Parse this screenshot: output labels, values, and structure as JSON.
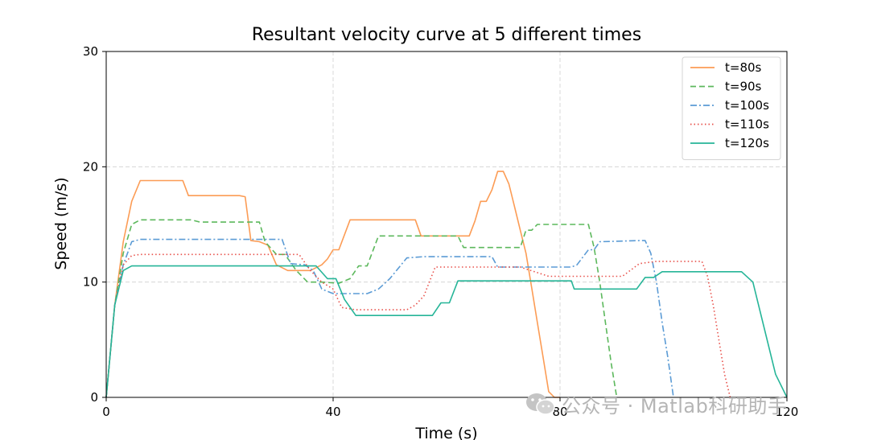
{
  "chart_data": {
    "type": "line",
    "title": "Resultant velocity curve at 5 different times",
    "xlabel": "Time (s)",
    "ylabel": "Speed (m/s)",
    "xlim": [
      0,
      120
    ],
    "ylim": [
      0,
      30
    ],
    "xticks": [
      0,
      40,
      80,
      120
    ],
    "yticks": [
      0,
      10,
      20,
      30
    ],
    "grid": true,
    "legend_position": "top-right",
    "series": [
      {
        "name": "t=80s",
        "color": "#fc9c55",
        "style": "solid",
        "x": [
          0,
          1.5,
          3,
          4.5,
          6,
          13.5,
          14.5,
          23.5,
          24.5,
          25.5,
          27,
          28.5,
          30,
          32,
          36,
          38,
          39,
          40,
          41,
          43,
          54.5,
          55.5,
          56.5,
          64,
          65,
          66,
          67,
          68,
          69,
          70,
          71,
          72,
          73,
          74,
          75,
          76,
          77,
          78,
          79,
          80
        ],
        "y": [
          0,
          8,
          13.5,
          17,
          18.8,
          18.8,
          17.5,
          17.5,
          17.4,
          13.6,
          13.5,
          13.2,
          11.5,
          11,
          11,
          11.5,
          12,
          12.8,
          12.8,
          15.4,
          15.4,
          14,
          14,
          14,
          15.3,
          17,
          17,
          18,
          19.6,
          19.6,
          18.5,
          16.5,
          14.5,
          12.5,
          9.5,
          6.5,
          3.5,
          0.5,
          0,
          0
        ]
      },
      {
        "name": "t=90s",
        "color": "#5cb85c",
        "style": "dashed",
        "x": [
          0,
          1.5,
          3,
          4.5,
          6,
          15,
          16.5,
          27,
          28,
          30,
          31.5,
          33.5,
          35.5,
          38,
          41,
          43,
          44.5,
          46,
          48,
          53,
          62,
          63,
          73,
          74,
          75,
          76,
          77,
          78,
          85,
          86,
          87,
          88,
          89,
          90
        ],
        "y": [
          0,
          8,
          12.5,
          15,
          15.4,
          15.4,
          15.2,
          15.2,
          13.5,
          12.4,
          12.4,
          11,
          10,
          10,
          9.9,
          10.3,
          11.4,
          11.4,
          14,
          14,
          14,
          13,
          13,
          14.5,
          14.5,
          15,
          15,
          15,
          15,
          13,
          10,
          6.5,
          3,
          0
        ]
      },
      {
        "name": "t=100s",
        "color": "#5b9bd5",
        "style": "dashdot",
        "x": [
          0,
          1.5,
          3,
          4.5,
          6,
          31,
          32.5,
          35,
          36.5,
          38,
          40,
          46,
          48,
          50,
          53,
          56,
          68,
          69,
          82,
          83,
          85,
          86,
          87,
          94,
          95,
          96,
          97,
          98,
          99,
          100
        ],
        "y": [
          0,
          8,
          11.5,
          13.5,
          13.7,
          13.7,
          11.6,
          11.5,
          11,
          9.4,
          9,
          9,
          9.4,
          10.3,
          12.1,
          12.2,
          12.2,
          11.3,
          11.3,
          11.5,
          12.8,
          12.8,
          13.5,
          13.6,
          13.6,
          12.5,
          10,
          6.5,
          3.5,
          0
        ]
      },
      {
        "name": "t=110s",
        "color": "#e8504a",
        "style": "dotted",
        "x": [
          0,
          1.5,
          3,
          4.5,
          6,
          34,
          36,
          38,
          40,
          41.5,
          44,
          53,
          54.5,
          56,
          58,
          69,
          70,
          73,
          78,
          80,
          90,
          91,
          94,
          97,
          104,
          105,
          106,
          107,
          108,
          109,
          110
        ],
        "y": [
          0,
          8,
          11.5,
          12.3,
          12.4,
          12.4,
          11,
          10,
          9.4,
          7.8,
          7.6,
          7.6,
          8,
          8.8,
          11.3,
          11.3,
          11.3,
          11.3,
          10.5,
          10.5,
          10.5,
          10.5,
          11.6,
          11.8,
          11.8,
          11.8,
          10.5,
          8,
          5,
          2,
          0
        ]
      },
      {
        "name": "t=120s",
        "color": "#26b598",
        "style": "solid",
        "x": [
          0,
          1.5,
          3,
          4.5,
          6,
          37,
          39,
          40.5,
          42,
          44,
          57.5,
          59,
          60.5,
          62,
          72,
          82,
          82.5,
          85,
          89,
          93.5,
          95,
          96.5,
          98,
          112,
          114,
          116,
          118,
          120
        ],
        "y": [
          0,
          8,
          11,
          11.4,
          11.4,
          11.4,
          10.3,
          10.3,
          8.5,
          7.1,
          7.1,
          8.2,
          8.2,
          10.1,
          10.1,
          10.1,
          9.4,
          9.4,
          9.4,
          9.4,
          10.4,
          10.4,
          10.9,
          10.9,
          10,
          6,
          2,
          0
        ]
      }
    ]
  },
  "watermark": {
    "text": "公众号 · Matlab科研助手",
    "icon": "wechat-icon"
  }
}
